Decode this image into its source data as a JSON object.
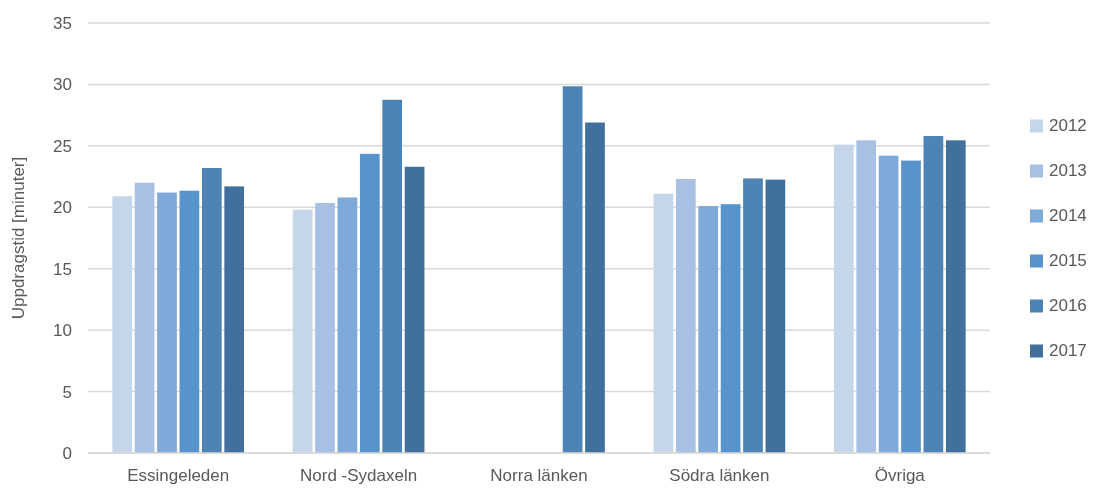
{
  "chart_data": {
    "type": "bar",
    "ylabel": "Uppdragstid [minuter]",
    "categories": [
      "Essingeleden",
      "Nord -Sydaxeln",
      "Norra länken",
      "Södra länken",
      "Övriga"
    ],
    "series": [
      {
        "name": "2012",
        "color": "#c5d5ea",
        "values": [
          20.9,
          19.8,
          null,
          21.1,
          25.1
        ]
      },
      {
        "name": "2013",
        "color": "#a7c0e3",
        "values": [
          22.0,
          20.35,
          null,
          22.3,
          25.45
        ]
      },
      {
        "name": "2014",
        "color": "#7ea9d8",
        "values": [
          21.2,
          20.8,
          null,
          20.1,
          24.2
        ]
      },
      {
        "name": "2015",
        "color": "#5893cb",
        "values": [
          21.35,
          24.35,
          null,
          20.25,
          23.8
        ]
      },
      {
        "name": "2016",
        "color": "#4d83b5",
        "values": [
          23.2,
          28.75,
          29.85,
          22.35,
          25.8
        ]
      },
      {
        "name": "2017",
        "color": "#42709c",
        "values": [
          21.7,
          23.3,
          26.9,
          22.25,
          25.45
        ]
      }
    ],
    "ylim": [
      0,
      35
    ],
    "yticks": [
      0,
      5,
      10,
      15,
      20,
      25,
      30,
      35
    ],
    "grid": "y",
    "legend": "right"
  }
}
